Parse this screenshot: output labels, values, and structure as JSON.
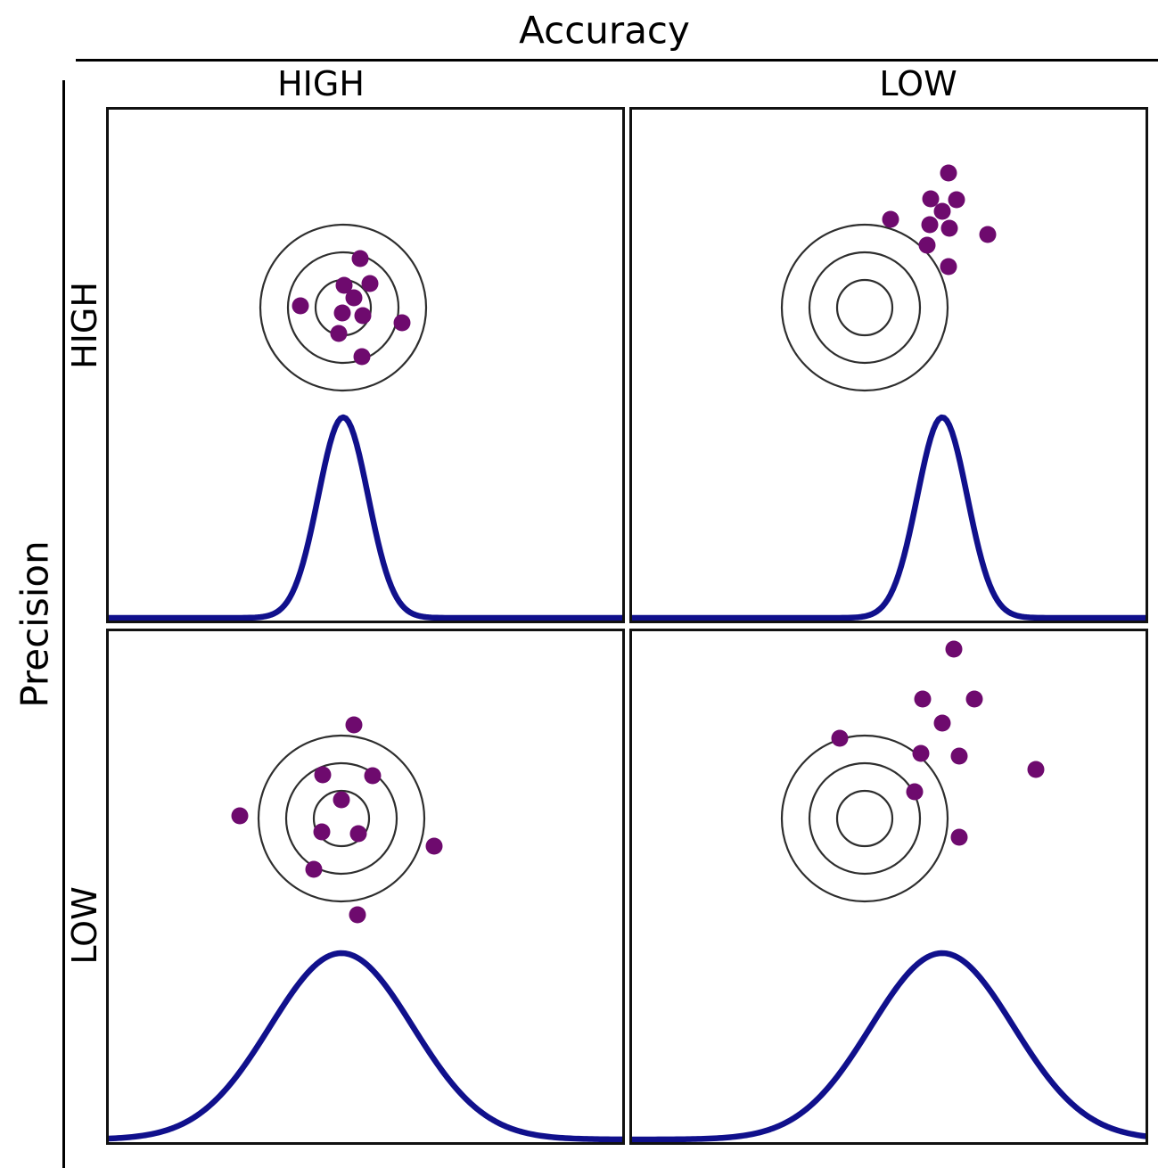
{
  "title": "Accuracy",
  "y_axis_title": "Precision",
  "column_labels": {
    "left": "HIGH",
    "right": "LOW"
  },
  "row_labels": {
    "top": "HIGH",
    "bottom": "LOW"
  },
  "colors": {
    "dot": "#6e0a6e",
    "curve": "#10108c",
    "ring": "#2e2e2e",
    "panel_border": "#111111",
    "axis_line": "#000000",
    "text": "#000000",
    "background": "#ffffff"
  },
  "geometry": {
    "dot_radius": 9.5,
    "ring_radii": [
      31,
      62,
      93
    ],
    "ring_stroke_width": 2.2,
    "curve_stroke_width": 6.5,
    "panel_view": [
      576,
      573
    ]
  },
  "panels": [
    {
      "id": "high-accuracy-high-precision",
      "accuracy": "HIGH",
      "precision": "HIGH",
      "target_center": [
        263,
        222
      ],
      "dots": [
        [
          282,
          167
        ],
        [
          264,
          197
        ],
        [
          293,
          195
        ],
        [
          275,
          211
        ],
        [
          215,
          220
        ],
        [
          262,
          228
        ],
        [
          285,
          231
        ],
        [
          329,
          239
        ],
        [
          258,
          251
        ],
        [
          284,
          277
        ]
      ],
      "curve": {
        "mean": 263,
        "sigma": 28,
        "amplitude": 225,
        "baseline": 570
      }
    },
    {
      "id": "low-accuracy-high-precision",
      "accuracy": "LOW",
      "precision": "HIGH",
      "target_center": [
        261,
        222
      ],
      "dots": [
        [
          355,
          71
        ],
        [
          335,
          100
        ],
        [
          364,
          101
        ],
        [
          348,
          114
        ],
        [
          290,
          123
        ],
        [
          334,
          129
        ],
        [
          356,
          133
        ],
        [
          399,
          140
        ],
        [
          331,
          152
        ],
        [
          355,
          176
        ]
      ],
      "curve": {
        "mean": 348,
        "sigma": 28,
        "amplitude": 225,
        "baseline": 570
      }
    },
    {
      "id": "high-accuracy-low-precision",
      "accuracy": "HIGH",
      "precision": "LOW",
      "target_center": [
        261,
        210
      ],
      "dots": [
        [
          275,
          105
        ],
        [
          240,
          161
        ],
        [
          296,
          162
        ],
        [
          261,
          189
        ],
        [
          147,
          207
        ],
        [
          239,
          225
        ],
        [
          280,
          227
        ],
        [
          365,
          241
        ],
        [
          230,
          267
        ],
        [
          279,
          318
        ]
      ],
      "curve": {
        "mean": 261,
        "sigma": 80,
        "amplitude": 209,
        "baseline": 570
      }
    },
    {
      "id": "low-accuracy-low-precision",
      "accuracy": "LOW",
      "precision": "LOW",
      "target_center": [
        261,
        210
      ],
      "dots": [
        [
          361,
          20
        ],
        [
          326,
          76
        ],
        [
          384,
          76
        ],
        [
          348,
          103
        ],
        [
          233,
          120
        ],
        [
          324,
          137
        ],
        [
          367,
          140
        ],
        [
          453,
          155
        ],
        [
          317,
          180
        ],
        [
          367,
          231
        ]
      ],
      "curve": {
        "mean": 348,
        "sigma": 80,
        "amplitude": 209,
        "baseline": 570
      }
    }
  ]
}
